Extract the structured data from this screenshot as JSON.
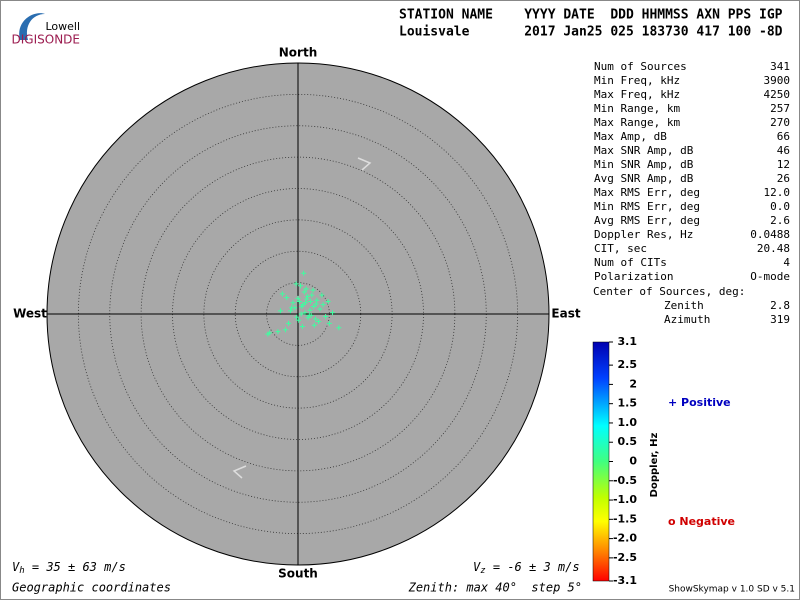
{
  "chart_data": {
    "type": "skymap",
    "logo": {
      "top": "Lowell",
      "bottom": "DIGISONDE"
    },
    "header": [
      "STATION NAME    YYYY DATE  DDD HHMMSS AXN PPS IGP",
      "Louisvale       2017 Jan25 025 183730 417 100 -8D"
    ],
    "directions": {
      "north": "North",
      "south": "South",
      "east": "East",
      "west": "West"
    },
    "rlim": [
      0,
      40
    ],
    "rticks": [
      5,
      10,
      15,
      20,
      25,
      30,
      35
    ],
    "sources": {
      "east": [
        0.2,
        0.8,
        1.5,
        2.0,
        -0.5,
        -1.2,
        1.0,
        2.5,
        3.0,
        0.5,
        -0.2,
        1.8,
        2.2,
        1.2,
        0.0,
        -0.8,
        3.5,
        4.0,
        2.8,
        1.6,
        0.9,
        -1.5,
        -2.0,
        -4.5,
        -3.2,
        0.4,
        1.1,
        2.4,
        3.3,
        5.0,
        6.5,
        4.8,
        -2.5,
        -1.0,
        0.7,
        1.9,
        2.6,
        -0.3,
        0.6,
        1.4,
        -4.8,
        -2.8,
        3.8,
        5.5,
        0.1,
        1.3,
        2.1,
        -1.8,
        2.9,
        4.4
      ],
      "north": [
        2.0,
        1.5,
        2.8,
        2.0,
        1.0,
        0.5,
        3.5,
        1.2,
        2.2,
        0.0,
        -0.5,
        -0.2,
        3.0,
        1.8,
        2.5,
        1.8,
        0.8,
        1.5,
        -0.8,
        -0.6,
        6.5,
        -1.5,
        -2.5,
        -3.0,
        -2.8,
        4.5,
        0.2,
        3.8,
        -1.2,
        -1.5,
        -2.2,
        2.0,
        3.2,
        1.0,
        -2.0,
        0.6,
        -1.8,
        4.8,
        1.2,
        2.4,
        -3.2,
        0.5,
        3.0,
        0.2,
        -1.0,
        4.0,
        -0.2,
        2.6,
        1.6,
        -0.4
      ],
      "color": "#3dffa0"
    },
    "stats": [
      [
        "Num of Sources",
        "341"
      ],
      [
        "Min Freq, kHz",
        "3900"
      ],
      [
        "Max Freq, kHz",
        "4250"
      ],
      [
        "Min Range, km",
        "257"
      ],
      [
        "Max Range, km",
        "270"
      ],
      [
        "Max Amp, dB",
        "66"
      ],
      [
        "Max SNR Amp, dB",
        "46"
      ],
      [
        "Min SNR Amp, dB",
        "12"
      ],
      [
        "Avg SNR Amp, dB",
        "26"
      ],
      [
        "Max RMS Err, deg",
        "12.0"
      ],
      [
        "Min RMS Err, deg",
        "0.0"
      ],
      [
        "Avg RMS Err, deg",
        "2.6"
      ],
      [
        "Doppler Res, Hz",
        "0.0488"
      ],
      [
        "CIT, sec",
        "20.48"
      ],
      [
        "Num of CITs",
        "4"
      ],
      [
        "Polarization",
        "O-mode"
      ]
    ],
    "center_title": "Center of Sources, deg:",
    "center": [
      [
        "Zenith",
        "2.8"
      ],
      [
        "Azimuth",
        "319"
      ]
    ],
    "colorbar": {
      "label": "Doppler, Hz",
      "clim": [
        -3.1,
        3.1
      ],
      "ticks": [
        3.1,
        2.5,
        {
          "value": 2,
          "label": "2"
        },
        1.5,
        {
          "value": 1,
          "label": "1.0"
        },
        0.5,
        0,
        -0.5,
        {
          "value": -1,
          "label": "-1.0"
        },
        -1.5,
        {
          "value": -2,
          "label": "-2.0"
        },
        -2.5,
        -3.1
      ]
    },
    "positive": "+ Positive",
    "negative": "o Negative",
    "vh": {
      "symbol": "V",
      "sub": "h",
      "text": " = 35 ± 63 m/s"
    },
    "vz": {
      "symbol": "V",
      "sub": "z",
      "text": " = -6 ± 3 m/s"
    },
    "coords": "Geographic coordinates",
    "zenith_label": "Zenith: max 40°  step 5°",
    "version": "ShowSkymap v 1.0  SD v 5.1"
  }
}
